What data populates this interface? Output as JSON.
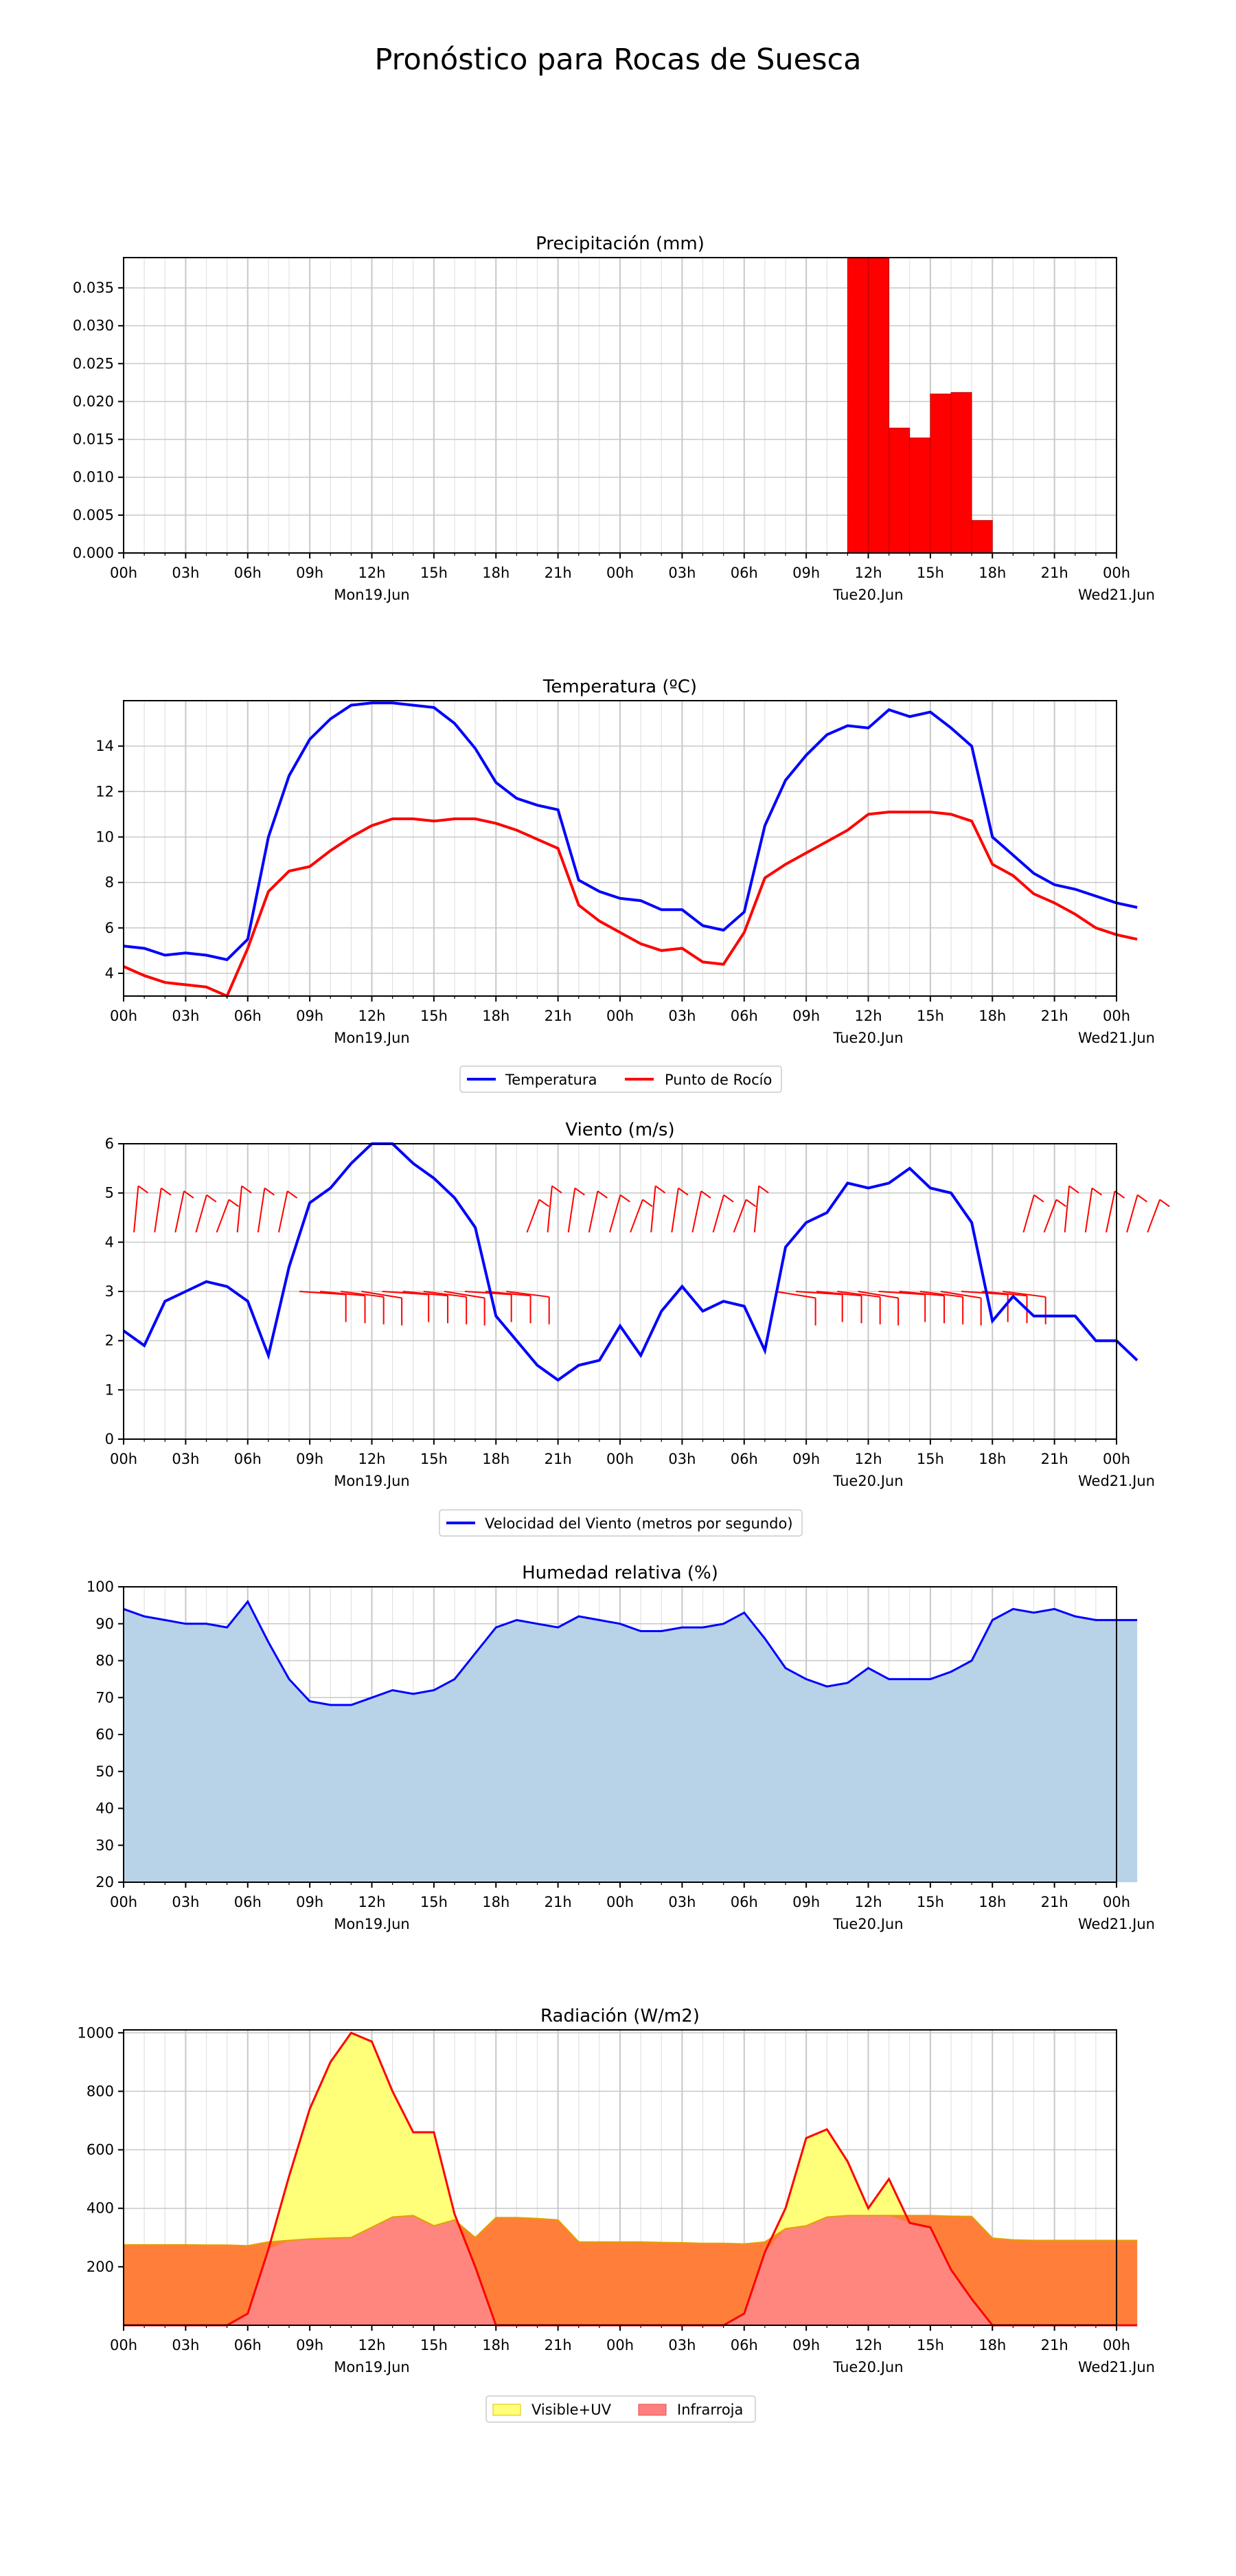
{
  "page": {
    "title": "Pronóstico para Rocas de Suesca"
  },
  "x_ticks": [
    "00h",
    "03h",
    "06h",
    "09h",
    "12h",
    "15h",
    "18h",
    "21h",
    "00h",
    "03h",
    "06h",
    "09h",
    "12h",
    "15h",
    "18h",
    "21h",
    "00h"
  ],
  "day_labels_a": [
    "Mon19.Jun",
    "Tue20.Jun",
    "Wed21.Jun"
  ],
  "day_labels_b": [
    "Mon19.Jun",
    "Tue20.Jun",
    "Wed21.Jun"
  ],
  "colors": {
    "temp": "#0000ff",
    "dew": "#ff0000",
    "precip": "#ff0000",
    "humidity_fill": "#b8d3e8",
    "humidity_line": "#0000ff",
    "rad_visible": "#ffff7a",
    "rad_ir": "#ff7f7f",
    "rad_overlap": "#ff7f3a",
    "rad_line": "#ff0000"
  },
  "chart_data": [
    {
      "type": "bar",
      "title": "Precipitación (mm)",
      "x_unit": "hours since Mon19.Jun 00h",
      "xlim": [
        0,
        48
      ],
      "ylim": [
        0,
        0.039
      ],
      "yticks": [
        "0.000",
        "0.005",
        "0.010",
        "0.015",
        "0.020",
        "0.025",
        "0.030",
        "0.035"
      ],
      "ytick_values": [
        0,
        0.005,
        0.01,
        0.015,
        0.02,
        0.025,
        0.03,
        0.035
      ],
      "bars": [
        {
          "x": 35,
          "value": 0.039
        },
        {
          "x": 36,
          "value": 0.039
        },
        {
          "x": 37,
          "value": 0.0165
        },
        {
          "x": 38,
          "value": 0.0152
        },
        {
          "x": 39,
          "value": 0.021
        },
        {
          "x": 40,
          "value": 0.0212
        },
        {
          "x": 41,
          "value": 0.0043
        }
      ]
    },
    {
      "type": "line",
      "title": "Temperatura (ºC)",
      "xlim": [
        0,
        48
      ],
      "ylim": [
        3,
        16
      ],
      "yticks": [
        "4",
        "6",
        "8",
        "10",
        "12",
        "14"
      ],
      "ytick_values": [
        4,
        6,
        8,
        10,
        12,
        14
      ],
      "series": [
        {
          "name": "Temperatura",
          "values": [
            5.2,
            5.1,
            4.8,
            4.9,
            4.8,
            4.6,
            5.5,
            10.0,
            12.7,
            14.3,
            15.2,
            15.8,
            15.9,
            15.9,
            15.8,
            15.7,
            15.0,
            13.9,
            12.4,
            11.7,
            11.4,
            11.2,
            8.1,
            7.6,
            7.3,
            7.2,
            6.8,
            6.8,
            6.1,
            5.9,
            6.7,
            10.5,
            12.5,
            13.6,
            14.5,
            14.9,
            14.8,
            15.6,
            15.3,
            15.5,
            14.8,
            14.0,
            10.0,
            9.2,
            8.4,
            7.9,
            7.7,
            7.4,
            7.1,
            6.9
          ]
        },
        {
          "name": "Punto de Rocío",
          "values": [
            4.3,
            3.9,
            3.6,
            3.5,
            3.4,
            3.0,
            5.1,
            7.6,
            8.5,
            8.7,
            9.4,
            10.0,
            10.5,
            10.8,
            10.8,
            10.7,
            10.8,
            10.8,
            10.6,
            10.3,
            9.9,
            9.5,
            7.0,
            6.3,
            5.8,
            5.3,
            5.0,
            5.1,
            4.5,
            4.4,
            5.8,
            8.2,
            8.8,
            9.3,
            9.8,
            10.3,
            11.0,
            11.1,
            11.1,
            11.1,
            11.0,
            10.7,
            8.8,
            8.3,
            7.5,
            7.1,
            6.6,
            6.0,
            5.7,
            5.5
          ]
        }
      ],
      "legend": {
        "placement": "bottom-center",
        "entries": [
          "Temperatura",
          "Punto de Rocío"
        ]
      }
    },
    {
      "type": "line",
      "title": "Viento (m/s)",
      "xlim": [
        0,
        48
      ],
      "ylim": [
        0,
        6
      ],
      "yticks": [
        "0",
        "1",
        "2",
        "3",
        "4",
        "5",
        "6"
      ],
      "ytick_values": [
        0,
        1,
        2,
        3,
        4,
        5,
        6
      ],
      "series": [
        {
          "name": "Velocidad del Viento (metros por segundo)",
          "values": [
            2.2,
            1.9,
            2.8,
            3.0,
            3.2,
            3.1,
            2.8,
            1.7,
            3.5,
            4.8,
            5.1,
            5.6,
            6.0,
            6.0,
            5.6,
            5.3,
            4.9,
            4.3,
            2.5,
            2.0,
            1.5,
            1.2,
            1.5,
            1.6,
            2.3,
            1.7,
            2.6,
            3.1,
            2.6,
            2.8,
            2.7,
            1.8,
            3.9,
            4.4,
            4.6,
            5.2,
            5.1,
            5.2,
            5.5,
            5.1,
            5.0,
            4.4,
            2.4,
            2.9,
            2.5,
            2.5,
            2.5,
            2.0,
            2.0,
            1.6
          ]
        }
      ],
      "legend": {
        "placement": "bottom-center",
        "entries": [
          "Velocidad del Viento (metros por segundo)"
        ]
      }
    },
    {
      "type": "area",
      "title": "Humedad relativa (%)",
      "xlim": [
        0,
        48
      ],
      "ylim": [
        20,
        100
      ],
      "yticks": [
        "20",
        "30",
        "40",
        "50",
        "60",
        "70",
        "80",
        "90",
        "100"
      ],
      "ytick_values": [
        20,
        30,
        40,
        50,
        60,
        70,
        80,
        90,
        100
      ],
      "series": [
        {
          "values": [
            94,
            92,
            91,
            90,
            90,
            89,
            96,
            85,
            75,
            69,
            68,
            68,
            70,
            72,
            71,
            72,
            75,
            82,
            89,
            91,
            90,
            89,
            92,
            91,
            90,
            88,
            88,
            89,
            89,
            90,
            93,
            86,
            78,
            75,
            73,
            74,
            78,
            75,
            75,
            75,
            77,
            80,
            91,
            94,
            93,
            94,
            92,
            91,
            91,
            91
          ]
        }
      ]
    },
    {
      "type": "area",
      "title": "Radiación (W/m2)",
      "xlim": [
        0,
        48
      ],
      "ylim": [
        0,
        1010
      ],
      "yticks": [
        "200",
        "400",
        "600",
        "800",
        "1000"
      ],
      "ytick_values": [
        200,
        400,
        600,
        800,
        1000
      ],
      "series": [
        {
          "name": "Visible+UV",
          "values": [
            0,
            0,
            0,
            0,
            0,
            0,
            40,
            260,
            510,
            740,
            900,
            1000,
            970,
            800,
            660,
            660,
            380,
            200,
            0,
            0,
            0,
            0,
            0,
            0,
            0,
            0,
            0,
            0,
            0,
            0,
            40,
            250,
            400,
            640,
            670,
            560,
            400,
            500,
            350,
            335,
            190,
            90,
            0,
            0,
            0,
            0,
            0,
            0,
            0,
            0
          ]
        },
        {
          "name": "Infrarroja",
          "values": [
            275,
            275,
            275,
            275,
            274,
            274,
            272,
            285,
            290,
            295,
            298,
            300,
            335,
            370,
            375,
            340,
            360,
            300,
            368,
            368,
            365,
            360,
            285,
            285,
            285,
            285,
            283,
            282,
            280,
            280,
            278,
            285,
            330,
            340,
            370,
            375,
            375,
            375,
            375,
            375,
            373,
            372,
            298,
            292,
            290,
            290,
            290,
            290,
            290,
            290
          ]
        }
      ],
      "legend": {
        "placement": "bottom-center",
        "entries": [
          "Visible+UV",
          "Infrarroja"
        ]
      }
    }
  ]
}
